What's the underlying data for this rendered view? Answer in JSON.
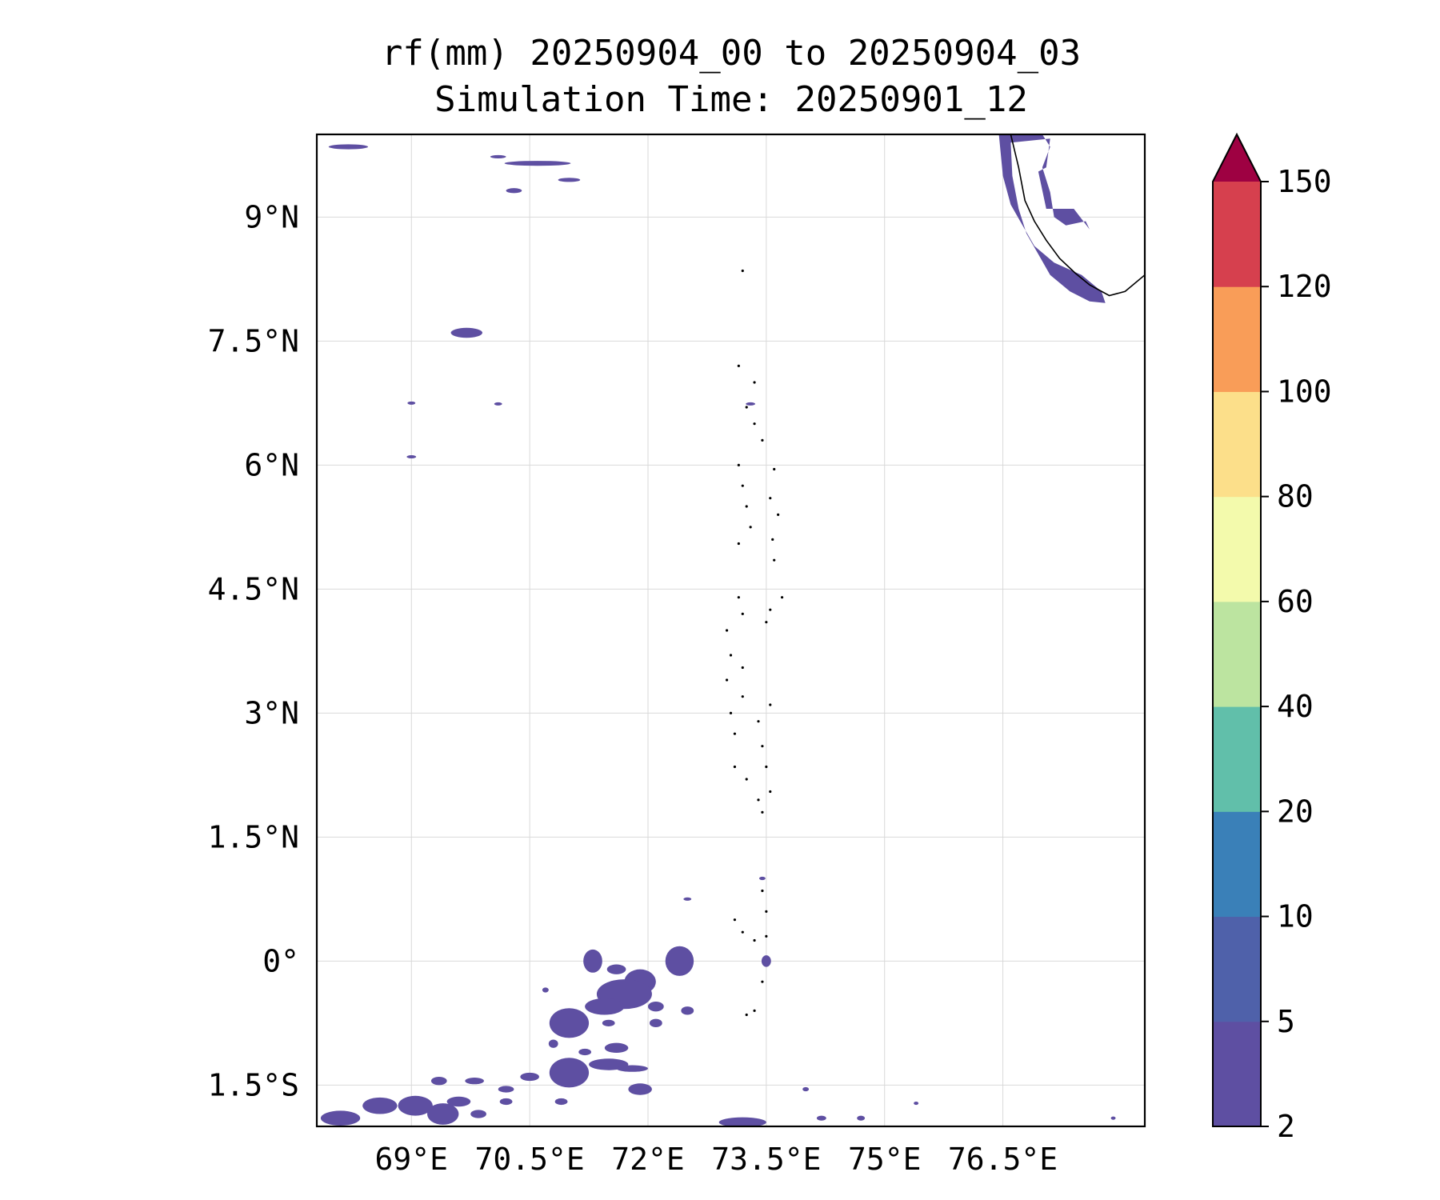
{
  "title": {
    "line1": "rf(mm) 20250904_00 to 20250904_03",
    "line2": "Simulation Time: 20250901_12"
  },
  "map": {
    "lon_range": [
      67.8,
      78.3
    ],
    "lat_range": [
      -2.0,
      10.0
    ],
    "lon_ticks": [
      {
        "value": 69.0,
        "label": "69°E"
      },
      {
        "value": 70.5,
        "label": "70.5°E"
      },
      {
        "value": 72.0,
        "label": "72°E"
      },
      {
        "value": 73.5,
        "label": "73.5°E"
      },
      {
        "value": 75.0,
        "label": "75°E"
      },
      {
        "value": 76.5,
        "label": "76.5°E"
      }
    ],
    "lat_ticks": [
      {
        "value": 9.0,
        "label": "9°N"
      },
      {
        "value": 7.5,
        "label": "7.5°N"
      },
      {
        "value": 6.0,
        "label": "6°N"
      },
      {
        "value": 4.5,
        "label": "4.5°N"
      },
      {
        "value": 3.0,
        "label": "3°N"
      },
      {
        "value": 1.5,
        "label": "1.5°N"
      },
      {
        "value": 0.0,
        "label": "0°"
      },
      {
        "value": -1.5,
        "label": "1.5°S"
      }
    ],
    "gridlines": true,
    "rain_color": "#5e4fa2",
    "rain_cells": [
      {
        "lon": 68.2,
        "lat": 9.85,
        "rlon": 0.25,
        "rlat": 0.03
      },
      {
        "lon": 70.6,
        "lat": 9.65,
        "rlon": 0.42,
        "rlat": 0.03
      },
      {
        "lon": 71.0,
        "lat": 9.45,
        "rlon": 0.14,
        "rlat": 0.025
      },
      {
        "lon": 70.1,
        "lat": 9.73,
        "rlon": 0.1,
        "rlat": 0.02
      },
      {
        "lon": 70.3,
        "lat": 9.32,
        "rlon": 0.1,
        "rlat": 0.03
      },
      {
        "lon": 69.7,
        "lat": 7.6,
        "rlon": 0.2,
        "rlat": 0.06
      },
      {
        "lon": 69.0,
        "lat": 6.75,
        "rlon": 0.05,
        "rlat": 0.015
      },
      {
        "lon": 70.1,
        "lat": 6.74,
        "rlon": 0.05,
        "rlat": 0.015
      },
      {
        "lon": 69.0,
        "lat": 6.1,
        "rlon": 0.06,
        "rlat": 0.015
      },
      {
        "lon": 73.3,
        "lat": 6.74,
        "rlon": 0.06,
        "rlat": 0.015
      },
      {
        "lon": 73.5,
        "lat": -0.0,
        "rlon": 0.06,
        "rlat": 0.07
      },
      {
        "lon": 73.45,
        "lat": 1.0,
        "rlon": 0.04,
        "rlat": 0.02
      },
      {
        "lon": 72.5,
        "lat": 0.75,
        "rlon": 0.05,
        "rlat": 0.02
      },
      {
        "lon": 70.7,
        "lat": -0.35,
        "rlon": 0.04,
        "rlat": 0.03
      },
      {
        "lon": 71.3,
        "lat": -0.0,
        "rlon": 0.12,
        "rlat": 0.14
      },
      {
        "lon": 72.4,
        "lat": 0.0,
        "rlon": 0.18,
        "rlat": 0.18
      },
      {
        "lon": 71.6,
        "lat": -0.1,
        "rlon": 0.12,
        "rlat": 0.06
      },
      {
        "lon": 71.9,
        "lat": -0.25,
        "rlon": 0.2,
        "rlat": 0.15
      },
      {
        "lon": 71.7,
        "lat": -0.4,
        "rlon": 0.35,
        "rlat": 0.18
      },
      {
        "lon": 71.45,
        "lat": -0.55,
        "rlon": 0.25,
        "rlat": 0.1
      },
      {
        "lon": 72.1,
        "lat": -0.55,
        "rlon": 0.1,
        "rlat": 0.06
      },
      {
        "lon": 72.5,
        "lat": -0.6,
        "rlon": 0.08,
        "rlat": 0.05
      },
      {
        "lon": 71.0,
        "lat": -0.75,
        "rlon": 0.25,
        "rlat": 0.18
      },
      {
        "lon": 71.5,
        "lat": -0.75,
        "rlon": 0.08,
        "rlat": 0.04
      },
      {
        "lon": 72.1,
        "lat": -0.75,
        "rlon": 0.08,
        "rlat": 0.05
      },
      {
        "lon": 71.6,
        "lat": -1.05,
        "rlon": 0.15,
        "rlat": 0.06
      },
      {
        "lon": 71.2,
        "lat": -1.1,
        "rlon": 0.08,
        "rlat": 0.04
      },
      {
        "lon": 70.8,
        "lat": -1.0,
        "rlon": 0.06,
        "rlat": 0.05
      },
      {
        "lon": 71.0,
        "lat": -1.35,
        "rlon": 0.25,
        "rlat": 0.18
      },
      {
        "lon": 71.5,
        "lat": -1.25,
        "rlon": 0.25,
        "rlat": 0.07
      },
      {
        "lon": 71.8,
        "lat": -1.3,
        "rlon": 0.2,
        "rlat": 0.04
      },
      {
        "lon": 71.9,
        "lat": -1.55,
        "rlon": 0.15,
        "rlat": 0.07
      },
      {
        "lon": 70.5,
        "lat": -1.4,
        "rlon": 0.12,
        "rlat": 0.05
      },
      {
        "lon": 70.2,
        "lat": -1.55,
        "rlon": 0.1,
        "rlat": 0.04
      },
      {
        "lon": 69.8,
        "lat": -1.45,
        "rlon": 0.12,
        "rlat": 0.04
      },
      {
        "lon": 69.35,
        "lat": -1.45,
        "rlon": 0.1,
        "rlat": 0.05
      },
      {
        "lon": 69.6,
        "lat": -1.7,
        "rlon": 0.15,
        "rlat": 0.06
      },
      {
        "lon": 69.05,
        "lat": -1.75,
        "rlon": 0.22,
        "rlat": 0.12
      },
      {
        "lon": 69.4,
        "lat": -1.85,
        "rlon": 0.2,
        "rlat": 0.13
      },
      {
        "lon": 68.6,
        "lat": -1.75,
        "rlon": 0.22,
        "rlat": 0.1
      },
      {
        "lon": 68.1,
        "lat": -1.9,
        "rlon": 0.25,
        "rlat": 0.09
      },
      {
        "lon": 69.85,
        "lat": -1.85,
        "rlon": 0.1,
        "rlat": 0.05
      },
      {
        "lon": 70.2,
        "lat": -1.7,
        "rlon": 0.08,
        "rlat": 0.04
      },
      {
        "lon": 70.9,
        "lat": -1.7,
        "rlon": 0.08,
        "rlat": 0.04
      },
      {
        "lon": 73.2,
        "lat": -1.95,
        "rlon": 0.3,
        "rlat": 0.06
      },
      {
        "lon": 74.2,
        "lat": -1.9,
        "rlon": 0.06,
        "rlat": 0.03
      },
      {
        "lon": 74.7,
        "lat": -1.9,
        "rlon": 0.05,
        "rlat": 0.03
      },
      {
        "lon": 74.0,
        "lat": -1.55,
        "rlon": 0.04,
        "rlat": 0.025
      },
      {
        "lon": 75.4,
        "lat": -1.72,
        "rlon": 0.03,
        "rlat": 0.02
      },
      {
        "lon": 77.9,
        "lat": -1.9,
        "rlon": 0.03,
        "rlat": 0.02
      }
    ],
    "rain_polygons": [
      [
        [
          77.0,
          10.0
        ],
        [
          76.45,
          10.0
        ],
        [
          76.5,
          9.5
        ],
        [
          76.6,
          9.15
        ],
        [
          76.75,
          8.9
        ],
        [
          76.9,
          8.65
        ],
        [
          77.15,
          8.45
        ],
        [
          77.5,
          8.3
        ],
        [
          77.75,
          8.1
        ],
        [
          77.8,
          7.96
        ],
        [
          77.6,
          7.98
        ],
        [
          77.35,
          8.1
        ],
        [
          77.1,
          8.3
        ],
        [
          76.95,
          8.55
        ],
        [
          76.8,
          8.8
        ],
        [
          76.7,
          9.1
        ],
        [
          76.62,
          9.5
        ],
        [
          76.6,
          9.9
        ],
        [
          77.1,
          9.95
        ],
        [
          77.05,
          9.6
        ],
        [
          76.95,
          9.55
        ],
        [
          77.05,
          9.1
        ],
        [
          77.4,
          9.1
        ],
        [
          77.6,
          8.85
        ],
        [
          77.55,
          8.95
        ],
        [
          77.3,
          8.9
        ],
        [
          77.15,
          9.0
        ],
        [
          77.1,
          9.3
        ],
        [
          77.0,
          9.6
        ],
        [
          77.1,
          9.85
        ],
        [
          77.0,
          10.0
        ]
      ]
    ],
    "coast_color": "#000000",
    "coastline": [
      [
        76.6,
        10.0
      ],
      [
        76.7,
        9.6
      ],
      [
        76.78,
        9.2
      ],
      [
        76.9,
        8.95
      ],
      [
        77.05,
        8.72
      ],
      [
        77.22,
        8.5
      ],
      [
        77.42,
        8.32
      ],
      [
        77.6,
        8.18
      ],
      [
        77.85,
        8.05
      ],
      [
        78.05,
        8.1
      ],
      [
        78.3,
        8.3
      ]
    ],
    "atolls": [
      [
        73.2,
        8.35
      ],
      [
        73.15,
        7.2
      ],
      [
        73.35,
        7.0
      ],
      [
        73.25,
        6.7
      ],
      [
        73.35,
        6.5
      ],
      [
        73.45,
        6.3
      ],
      [
        73.15,
        6.0
      ],
      [
        73.2,
        5.75
      ],
      [
        73.25,
        5.5
      ],
      [
        73.3,
        5.25
      ],
      [
        73.15,
        5.05
      ],
      [
        73.6,
        5.95
      ],
      [
        73.55,
        5.6
      ],
      [
        73.65,
        5.4
      ],
      [
        73.58,
        5.1
      ],
      [
        73.6,
        4.85
      ],
      [
        73.7,
        4.4
      ],
      [
        73.55,
        4.25
      ],
      [
        73.5,
        4.1
      ],
      [
        73.15,
        4.4
      ],
      [
        73.2,
        4.2
      ],
      [
        73.0,
        4.0
      ],
      [
        73.05,
        3.7
      ],
      [
        73.2,
        3.55
      ],
      [
        73.0,
        3.4
      ],
      [
        73.2,
        3.2
      ],
      [
        73.05,
        3.0
      ],
      [
        73.1,
        2.75
      ],
      [
        73.4,
        2.9
      ],
      [
        73.55,
        3.1
      ],
      [
        73.45,
        2.6
      ],
      [
        73.5,
        2.35
      ],
      [
        73.1,
        2.35
      ],
      [
        73.25,
        2.2
      ],
      [
        73.4,
        1.95
      ],
      [
        73.55,
        2.05
      ],
      [
        73.45,
        1.8
      ],
      [
        73.45,
        0.85
      ],
      [
        73.5,
        0.6
      ],
      [
        73.1,
        0.5
      ],
      [
        73.2,
        0.35
      ],
      [
        73.35,
        0.25
      ],
      [
        73.5,
        0.3
      ],
      [
        73.45,
        -0.25
      ],
      [
        73.35,
        -0.6
      ],
      [
        73.25,
        -0.65
      ]
    ]
  },
  "colorbar": {
    "levels": [
      "2",
      "5",
      "10",
      "20",
      "40",
      "60",
      "80",
      "100",
      "120",
      "150"
    ],
    "colors": [
      "#5e4fa2",
      "#4f61aa",
      "#3a80b8",
      "#61bfaa",
      "#bce4a0",
      "#f3faac",
      "#fcdf8a",
      "#f99d58",
      "#d6404e",
      "#9e0142"
    ]
  }
}
